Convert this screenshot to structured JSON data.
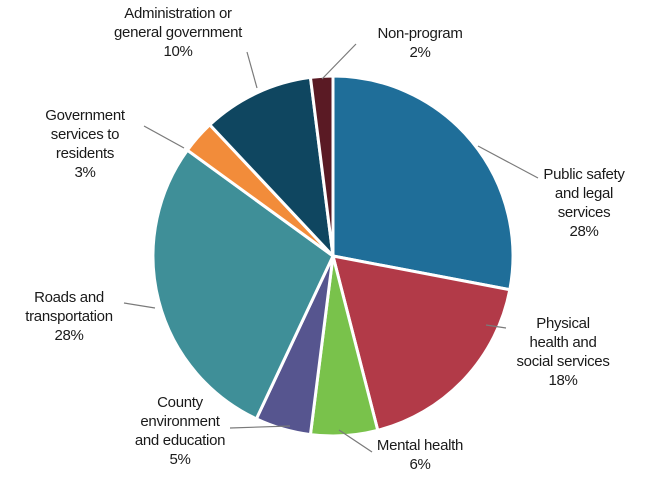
{
  "chart_data": {
    "type": "pie",
    "title": "",
    "slices": [
      {
        "name": "Public safety and legal services",
        "label_lines": [
          "Public safety",
          "and legal",
          "services"
        ],
        "pct_text": "28%",
        "value": 28,
        "color": "#1f6e99"
      },
      {
        "name": "Physical health and social services",
        "label_lines": [
          "Physical",
          "health and",
          "social services"
        ],
        "pct_text": "18%",
        "value": 18,
        "color": "#b23a48"
      },
      {
        "name": "Mental health",
        "label_lines": [
          "Mental health"
        ],
        "pct_text": "6%",
        "value": 6,
        "color": "#79c24b"
      },
      {
        "name": "County environment and education",
        "label_lines": [
          "County",
          "environment",
          "and education"
        ],
        "pct_text": "5%",
        "value": 5,
        "color": "#56558f"
      },
      {
        "name": "Roads and transportation",
        "label_lines": [
          "Roads and",
          "transportation"
        ],
        "pct_text": "28%",
        "value": 28,
        "color": "#3f8f98"
      },
      {
        "name": "Government services to residents",
        "label_lines": [
          "Government",
          "services to",
          "residents"
        ],
        "pct_text": "3%",
        "value": 3,
        "color": "#f28c3a"
      },
      {
        "name": "Administration or general government",
        "label_lines": [
          "Administration or",
          "general government"
        ],
        "pct_text": "10%",
        "value": 10,
        "color": "#0f4660"
      },
      {
        "name": "Non-program",
        "label_lines": [
          "Non-program"
        ],
        "pct_text": "2%",
        "value": 2,
        "color": "#5a1a24"
      }
    ]
  }
}
